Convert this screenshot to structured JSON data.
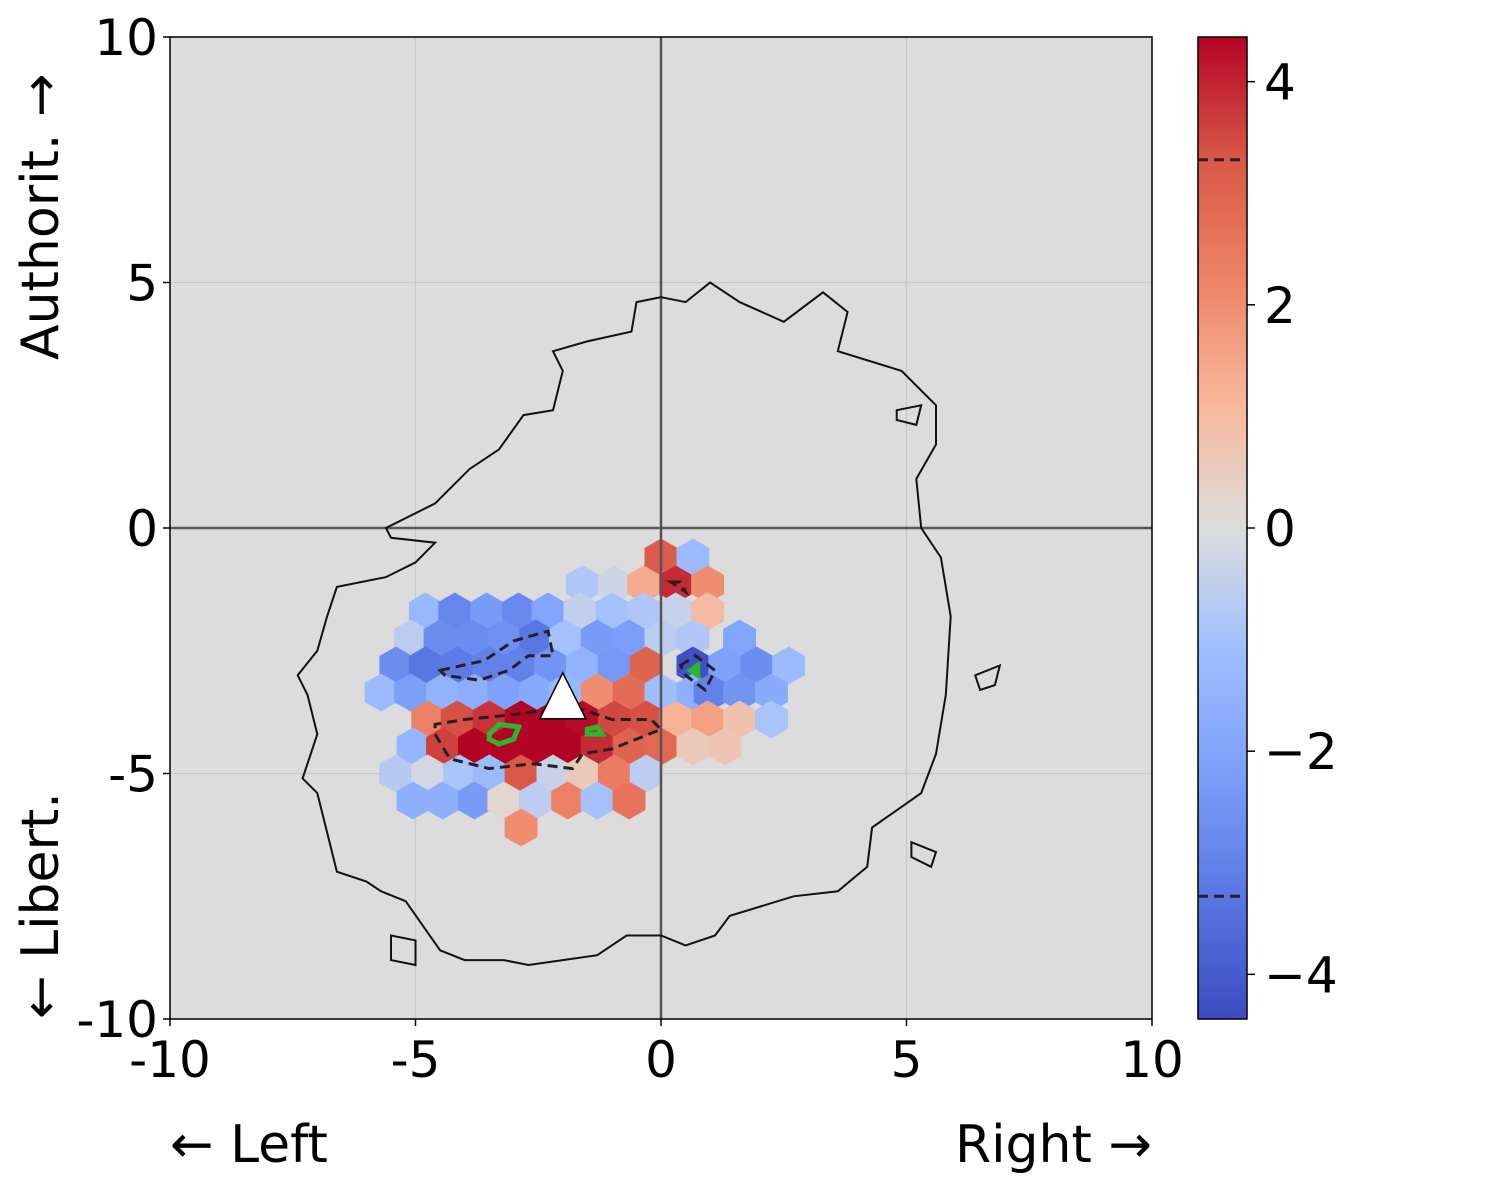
{
  "chart_data": {
    "type": "heatmap",
    "subtype": "hexbin",
    "title": "",
    "x_ticks": [
      "-10",
      "-5",
      "0",
      "5",
      "10"
    ],
    "y_ticks": [
      "10",
      "5",
      "0",
      "-5",
      "-10"
    ],
    "x_label_left": "← Left",
    "x_label_right": "Right →",
    "y_label_top": "Authorit. →",
    "y_label_bottom": "← Libert.",
    "xlim": [
      -10,
      10
    ],
    "ylim": [
      -10,
      10
    ],
    "grid": true,
    "background_color": "#dcdcdc",
    "colormap": "coolwarm",
    "colorbar": {
      "range": [
        -4.4,
        4.4
      ],
      "ticks": [
        4,
        2,
        0,
        -2,
        -4
      ],
      "tick_labels": [
        "4",
        "2",
        "0",
        "−2",
        "−4"
      ],
      "dashed_levels": [
        3.3,
        -3.3
      ]
    },
    "marker": {
      "shape": "triangle",
      "x": -2.0,
      "y": -3.6,
      "color": "#ffffff"
    },
    "hexbins": [
      {
        "x": 0.0,
        "y": -0.6,
        "v": 3.2
      },
      {
        "x": 0.65,
        "y": -0.6,
        "v": -1.2
      },
      {
        "x": -1.6,
        "y": -1.15,
        "v": -0.8
      },
      {
        "x": -0.95,
        "y": -1.15,
        "v": -0.3
      },
      {
        "x": -0.35,
        "y": -1.15,
        "v": 1.4
      },
      {
        "x": 0.3,
        "y": -1.15,
        "v": 3.9
      },
      {
        "x": 0.95,
        "y": -1.15,
        "v": 2.0
      },
      {
        "x": -4.8,
        "y": -1.7,
        "v": -1.3
      },
      {
        "x": -4.2,
        "y": -1.7,
        "v": -2.9
      },
      {
        "x": -3.55,
        "y": -1.7,
        "v": -2.3
      },
      {
        "x": -2.9,
        "y": -1.7,
        "v": -2.8
      },
      {
        "x": -2.3,
        "y": -1.7,
        "v": -2.0
      },
      {
        "x": -1.65,
        "y": -1.7,
        "v": -0.5
      },
      {
        "x": -1.0,
        "y": -1.7,
        "v": -1.0
      },
      {
        "x": -0.35,
        "y": -1.7,
        "v": -0.8
      },
      {
        "x": 0.3,
        "y": -1.7,
        "v": -0.4
      },
      {
        "x": 0.95,
        "y": -1.7,
        "v": 1.0
      },
      {
        "x": -5.1,
        "y": -2.25,
        "v": -0.6
      },
      {
        "x": -4.5,
        "y": -2.25,
        "v": -2.7
      },
      {
        "x": -3.85,
        "y": -2.25,
        "v": -2.7
      },
      {
        "x": -3.2,
        "y": -2.25,
        "v": -2.6
      },
      {
        "x": -2.55,
        "y": -2.25,
        "v": -3.3
      },
      {
        "x": -1.95,
        "y": -2.25,
        "v": -1.0
      },
      {
        "x": -1.3,
        "y": -2.25,
        "v": -2.3
      },
      {
        "x": -0.65,
        "y": -2.25,
        "v": -2.2
      },
      {
        "x": 0.0,
        "y": -2.25,
        "v": -0.6
      },
      {
        "x": 0.65,
        "y": -2.25,
        "v": -0.8
      },
      {
        "x": 1.6,
        "y": -2.25,
        "v": -2.0
      },
      {
        "x": -5.4,
        "y": -2.8,
        "v": -2.7
      },
      {
        "x": -4.8,
        "y": -2.8,
        "v": -3.3
      },
      {
        "x": -4.15,
        "y": -2.8,
        "v": -3.2
      },
      {
        "x": -3.5,
        "y": -2.8,
        "v": -3.0
      },
      {
        "x": -2.9,
        "y": -2.8,
        "v": -3.0
      },
      {
        "x": -2.25,
        "y": -2.8,
        "v": -2.5
      },
      {
        "x": -1.6,
        "y": -2.8,
        "v": -1.5
      },
      {
        "x": -0.95,
        "y": -2.8,
        "v": -2.4
      },
      {
        "x": -0.3,
        "y": -2.8,
        "v": 3.0
      },
      {
        "x": 0.65,
        "y": -2.8,
        "v": -4.3
      },
      {
        "x": 1.3,
        "y": -2.8,
        "v": -2.1
      },
      {
        "x": 1.95,
        "y": -2.8,
        "v": -2.7
      },
      {
        "x": 2.6,
        "y": -2.8,
        "v": -1.2
      },
      {
        "x": -5.7,
        "y": -3.35,
        "v": -1.2
      },
      {
        "x": -5.1,
        "y": -3.35,
        "v": -2.2
      },
      {
        "x": -4.45,
        "y": -3.35,
        "v": -1.5
      },
      {
        "x": -3.8,
        "y": -3.35,
        "v": -1.7
      },
      {
        "x": -3.2,
        "y": -3.35,
        "v": -2.1
      },
      {
        "x": -2.55,
        "y": -3.35,
        "v": -1.8
      },
      {
        "x": -1.95,
        "y": -3.35,
        "v": -1.3
      },
      {
        "x": -1.3,
        "y": -3.35,
        "v": 2.0
      },
      {
        "x": -0.65,
        "y": -3.35,
        "v": 2.8
      },
      {
        "x": 0.0,
        "y": -3.35,
        "v": -1.1
      },
      {
        "x": 0.65,
        "y": -3.35,
        "v": -1.6
      },
      {
        "x": 1.0,
        "y": -3.35,
        "v": -3.0
      },
      {
        "x": 1.6,
        "y": -3.35,
        "v": -2.5
      },
      {
        "x": 2.25,
        "y": -3.35,
        "v": -1.8
      },
      {
        "x": -4.75,
        "y": -3.9,
        "v": 2.3
      },
      {
        "x": -4.15,
        "y": -3.9,
        "v": 3.4
      },
      {
        "x": -3.5,
        "y": -3.9,
        "v": 3.8
      },
      {
        "x": -2.85,
        "y": -3.9,
        "v": 4.4
      },
      {
        "x": -2.2,
        "y": -3.9,
        "v": 4.4
      },
      {
        "x": -1.6,
        "y": -3.9,
        "v": 4.3
      },
      {
        "x": -0.95,
        "y": -3.9,
        "v": 3.5
      },
      {
        "x": -0.3,
        "y": -3.9,
        "v": 3.4
      },
      {
        "x": 0.3,
        "y": -3.9,
        "v": 1.2
      },
      {
        "x": 0.95,
        "y": -3.9,
        "v": 1.6
      },
      {
        "x": 1.6,
        "y": -3.9,
        "v": 0.8
      },
      {
        "x": 2.25,
        "y": -3.9,
        "v": -0.9
      },
      {
        "x": -5.05,
        "y": -4.45,
        "v": -1.4
      },
      {
        "x": -4.45,
        "y": -4.45,
        "v": 3.6
      },
      {
        "x": -3.8,
        "y": -4.45,
        "v": 4.4
      },
      {
        "x": -3.2,
        "y": -4.45,
        "v": 4.4
      },
      {
        "x": -2.55,
        "y": -4.45,
        "v": 4.4
      },
      {
        "x": -1.9,
        "y": -4.45,
        "v": 4.4
      },
      {
        "x": -1.3,
        "y": -4.45,
        "v": 3.9
      },
      {
        "x": -0.65,
        "y": -4.45,
        "v": 3.0
      },
      {
        "x": 0.0,
        "y": -4.45,
        "v": 2.9
      },
      {
        "x": 0.65,
        "y": -4.45,
        "v": 0.6
      },
      {
        "x": 1.3,
        "y": -4.45,
        "v": 0.7
      },
      {
        "x": -5.4,
        "y": -5.0,
        "v": -0.7
      },
      {
        "x": -4.75,
        "y": -5.0,
        "v": -0.2
      },
      {
        "x": -4.1,
        "y": -5.0,
        "v": -0.9
      },
      {
        "x": -3.5,
        "y": -5.0,
        "v": -1.2
      },
      {
        "x": -2.85,
        "y": -5.0,
        "v": 3.3
      },
      {
        "x": -2.2,
        "y": -5.0,
        "v": -0.4
      },
      {
        "x": -1.6,
        "y": -5.0,
        "v": 0.6
      },
      {
        "x": -0.95,
        "y": -5.0,
        "v": 2.4
      },
      {
        "x": -0.3,
        "y": -5.0,
        "v": -0.6
      },
      {
        "x": -5.05,
        "y": -5.55,
        "v": -1.6
      },
      {
        "x": -4.45,
        "y": -5.55,
        "v": -1.6
      },
      {
        "x": -3.8,
        "y": -5.55,
        "v": -2.3
      },
      {
        "x": -3.2,
        "y": -5.55,
        "v": 0.2
      },
      {
        "x": -2.55,
        "y": -5.55,
        "v": -0.6
      },
      {
        "x": -1.9,
        "y": -5.55,
        "v": 2.3
      },
      {
        "x": -1.3,
        "y": -5.55,
        "v": -1.0
      },
      {
        "x": -0.65,
        "y": -5.55,
        "v": 2.6
      },
      {
        "x": -2.85,
        "y": -6.1,
        "v": 2.0
      }
    ],
    "outer_contour": [
      [
        0.0,
        4.7
      ],
      [
        0.5,
        4.6
      ],
      [
        1.0,
        5.0
      ],
      [
        1.6,
        4.6
      ],
      [
        2.5,
        4.2
      ],
      [
        3.3,
        4.8
      ],
      [
        3.8,
        4.4
      ],
      [
        3.6,
        3.6
      ],
      [
        4.9,
        3.2
      ],
      [
        5.6,
        2.5
      ],
      [
        5.6,
        1.7
      ],
      [
        5.2,
        1.0
      ],
      [
        5.3,
        0.0
      ],
      [
        5.7,
        -0.6
      ],
      [
        5.9,
        -1.8
      ],
      [
        5.8,
        -3.4
      ],
      [
        5.6,
        -4.6
      ],
      [
        5.3,
        -5.4
      ],
      [
        4.3,
        -6.1
      ],
      [
        4.2,
        -6.9
      ],
      [
        3.6,
        -7.4
      ],
      [
        2.7,
        -7.5
      ],
      [
        1.4,
        -7.9
      ],
      [
        1.1,
        -8.3
      ],
      [
        0.5,
        -8.5
      ],
      [
        0.0,
        -8.3
      ],
      [
        -0.7,
        -8.3
      ],
      [
        -1.3,
        -8.7
      ],
      [
        -2.0,
        -8.8
      ],
      [
        -2.7,
        -8.9
      ],
      [
        -3.2,
        -8.8
      ],
      [
        -4.0,
        -8.8
      ],
      [
        -4.5,
        -8.6
      ],
      [
        -5.2,
        -7.6
      ],
      [
        -5.7,
        -7.4
      ],
      [
        -6.0,
        -7.2
      ],
      [
        -6.6,
        -7.0
      ],
      [
        -6.8,
        -6.2
      ],
      [
        -7.0,
        -5.4
      ],
      [
        -7.3,
        -5.1
      ],
      [
        -7.0,
        -4.2
      ],
      [
        -7.2,
        -3.4
      ],
      [
        -7.4,
        -3.0
      ],
      [
        -7.0,
        -2.5
      ],
      [
        -6.8,
        -1.8
      ],
      [
        -6.6,
        -1.2
      ],
      [
        -5.6,
        -1.0
      ],
      [
        -5.0,
        -0.7
      ],
      [
        -4.6,
        -0.3
      ],
      [
        -5.5,
        -0.2
      ],
      [
        -5.6,
        0.0
      ],
      [
        -4.6,
        0.5
      ],
      [
        -3.9,
        1.2
      ],
      [
        -3.3,
        1.6
      ],
      [
        -2.8,
        2.3
      ],
      [
        -2.2,
        2.4
      ],
      [
        -2.0,
        3.2
      ],
      [
        -2.2,
        3.6
      ],
      [
        -1.5,
        3.8
      ],
      [
        -0.6,
        4.0
      ],
      [
        -0.5,
        4.6
      ]
    ],
    "island_contours": [
      [
        [
          6.4,
          -3.0
        ],
        [
          6.9,
          -2.8
        ],
        [
          6.8,
          -3.2
        ],
        [
          6.5,
          -3.3
        ]
      ],
      [
        [
          5.1,
          -6.4
        ],
        [
          5.6,
          -6.6
        ],
        [
          5.5,
          -6.9
        ],
        [
          5.1,
          -6.7
        ]
      ],
      [
        [
          -5.5,
          -8.3
        ],
        [
          -5.0,
          -8.4
        ],
        [
          -5.0,
          -8.9
        ],
        [
          -5.5,
          -8.8
        ]
      ],
      [
        [
          4.8,
          2.4
        ],
        [
          5.3,
          2.5
        ],
        [
          5.2,
          2.1
        ],
        [
          4.8,
          2.2
        ]
      ]
    ],
    "dashed_contours": [
      [
        [
          -4.6,
          -4.2
        ],
        [
          -4.3,
          -4.7
        ],
        [
          -3.5,
          -4.9
        ],
        [
          -2.6,
          -4.8
        ],
        [
          -1.8,
          -4.9
        ],
        [
          -1.6,
          -4.6
        ],
        [
          -1.0,
          -4.5
        ],
        [
          -0.5,
          -4.3
        ],
        [
          0.0,
          -4.1
        ],
        [
          -0.2,
          -3.9
        ],
        [
          -1.0,
          -3.9
        ],
        [
          -1.6,
          -3.7
        ],
        [
          -2.3,
          -3.7
        ],
        [
          -3.0,
          -3.8
        ],
        [
          -4.0,
          -3.9
        ],
        [
          -4.6,
          -4.0
        ]
      ],
      [
        [
          -4.5,
          -2.9
        ],
        [
          -3.6,
          -2.7
        ],
        [
          -3.0,
          -2.3
        ],
        [
          -2.3,
          -2.1
        ],
        [
          -2.2,
          -2.6
        ],
        [
          -2.7,
          -2.6
        ],
        [
          -3.1,
          -2.9
        ],
        [
          -3.7,
          -3.1
        ],
        [
          -4.4,
          -3.0
        ]
      ],
      [
        [
          0.4,
          -2.8
        ],
        [
          0.7,
          -2.6
        ],
        [
          1.1,
          -2.9
        ],
        [
          0.9,
          -3.3
        ],
        [
          0.5,
          -3.0
        ]
      ],
      [
        [
          0.2,
          -1.1
        ],
        [
          0.4,
          -1.1
        ],
        [
          0.5,
          -1.3
        ]
      ]
    ],
    "green_contours": [
      [
        [
          -3.5,
          -4.2
        ],
        [
          -3.3,
          -4.0
        ],
        [
          -2.9,
          -4.05
        ],
        [
          -3.0,
          -4.3
        ],
        [
          -3.3,
          -4.4
        ],
        [
          -3.5,
          -4.3
        ]
      ],
      [
        [
          -1.5,
          -4.1
        ],
        [
          -1.3,
          -4.05
        ],
        [
          -1.2,
          -4.2
        ],
        [
          -1.5,
          -4.2
        ]
      ],
      [
        [
          0.6,
          -2.9
        ],
        [
          0.75,
          -2.8
        ],
        [
          0.75,
          -3.0
        ]
      ]
    ]
  }
}
